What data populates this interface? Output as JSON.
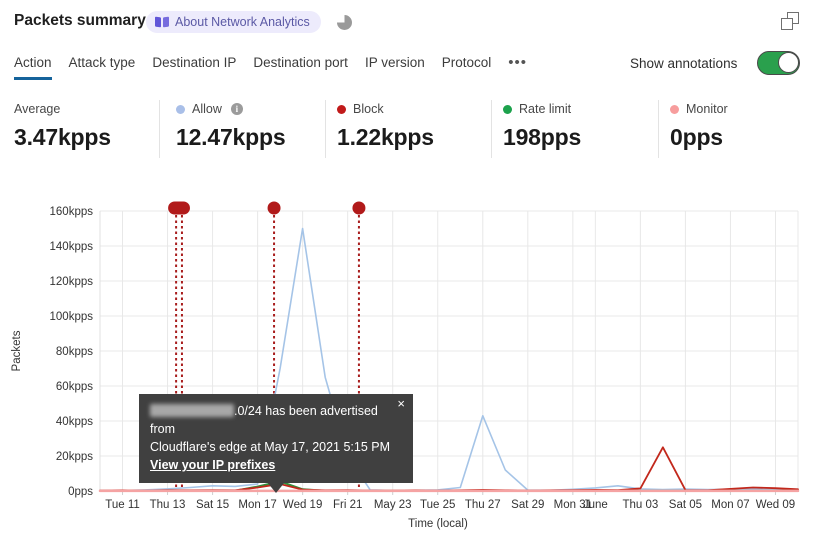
{
  "header": {
    "title": "Packets summary",
    "badge_label": "About Network Analytics"
  },
  "icons": {
    "info": "i",
    "close": "×",
    "more": "•••"
  },
  "tabs": {
    "items": [
      {
        "label": "Action",
        "active": true
      },
      {
        "label": "Attack type",
        "active": false
      },
      {
        "label": "Destination IP",
        "active": false
      },
      {
        "label": "Destination port",
        "active": false
      },
      {
        "label": "IP version",
        "active": false
      },
      {
        "label": "Protocol",
        "active": false
      }
    ]
  },
  "annotations_toggle": {
    "label": "Show annotations",
    "on": true
  },
  "stats": [
    {
      "label": "Average",
      "value": "3.47kpps",
      "dot": null,
      "info": false
    },
    {
      "label": "Allow",
      "value": "12.47kpps",
      "dot": "#a9bfe8",
      "info": true
    },
    {
      "label": "Block",
      "value": "1.22kpps",
      "dot": "#c11a1a",
      "info": false
    },
    {
      "label": "Rate limit",
      "value": "198pps",
      "dot": "#1ca24c",
      "info": false
    },
    {
      "label": "Monitor",
      "value": "0pps",
      "dot": "#f79d9d",
      "info": false
    }
  ],
  "tooltip": {
    "line1": ".0/24 has been advertised from",
    "line2": "Cloudflare's edge at May 17, 2021 5:15 PM",
    "link_label": "View your IP prefixes"
  },
  "chart_data": {
    "type": "line",
    "title": "Packets summary",
    "xlabel": "Time (local)",
    "ylabel": "Packets",
    "unit": "kpps",
    "ylim": [
      0,
      160
    ],
    "grid": true,
    "y_ticks": [
      {
        "value": 0,
        "label": "0pps"
      },
      {
        "value": 20,
        "label": "20kpps"
      },
      {
        "value": 40,
        "label": "40kpps"
      },
      {
        "value": 60,
        "label": "60kpps"
      },
      {
        "value": 80,
        "label": "80kpps"
      },
      {
        "value": 100,
        "label": "100kpps"
      },
      {
        "value": 120,
        "label": "120kpps"
      },
      {
        "value": 140,
        "label": "140kpps"
      },
      {
        "value": 160,
        "label": "160kpps"
      }
    ],
    "x_ticks": [
      {
        "day": 0,
        "label": "Tue 11"
      },
      {
        "day": 2,
        "label": "Thu 13"
      },
      {
        "day": 4,
        "label": "Sat 15"
      },
      {
        "day": 6,
        "label": "Mon 17"
      },
      {
        "day": 8,
        "label": "Wed 19"
      },
      {
        "day": 10,
        "label": "Fri 21"
      },
      {
        "day": 12,
        "label": "May 23"
      },
      {
        "day": 14,
        "label": "Tue 25"
      },
      {
        "day": 16,
        "label": "Thu 27"
      },
      {
        "day": 18,
        "label": "Sat 29"
      },
      {
        "day": 20,
        "label": "Mon 31"
      },
      {
        "day": 21,
        "label": "June"
      },
      {
        "day": 23,
        "label": "Thu 03"
      },
      {
        "day": 25,
        "label": "Sat 05"
      },
      {
        "day": 27,
        "label": "Mon 07"
      },
      {
        "day": 29,
        "label": "Wed 09"
      }
    ],
    "x_range_days": [
      -1,
      30
    ],
    "series": [
      {
        "name": "Allow",
        "color": "#a5c4e7",
        "width": 1.6,
        "points": [
          [
            -1,
            0.2
          ],
          [
            0,
            0.3
          ],
          [
            1,
            0.6
          ],
          [
            2,
            1.2
          ],
          [
            3,
            2
          ],
          [
            4,
            3
          ],
          [
            5,
            2.6
          ],
          [
            6,
            4
          ],
          [
            7,
            70
          ],
          [
            8,
            150
          ],
          [
            9,
            65
          ],
          [
            10,
            20
          ],
          [
            11,
            0.6
          ],
          [
            12,
            0.3
          ],
          [
            13,
            0.4
          ],
          [
            14,
            0.6
          ],
          [
            15,
            2
          ],
          [
            16,
            43
          ],
          [
            17,
            12
          ],
          [
            18,
            0.5
          ],
          [
            19,
            0.4
          ],
          [
            20,
            1
          ],
          [
            21,
            1.8
          ],
          [
            22,
            3
          ],
          [
            23,
            1.2
          ],
          [
            24,
            0.8
          ],
          [
            25,
            1.1
          ],
          [
            26,
            0.8
          ],
          [
            27,
            1
          ],
          [
            28,
            1.1
          ],
          [
            29,
            0.8
          ],
          [
            30,
            0.6
          ]
        ]
      },
      {
        "name": "Rate limit",
        "color": "#2f8f3c",
        "width": 2,
        "points": [
          [
            -1,
            0.1
          ],
          [
            4,
            0.1
          ],
          [
            5,
            0.15
          ],
          [
            6,
            2.5
          ],
          [
            7,
            5.5
          ],
          [
            8,
            1
          ],
          [
            9,
            0.15
          ],
          [
            30,
            0.1
          ]
        ]
      },
      {
        "name": "Block",
        "color": "#c2281c",
        "width": 1.8,
        "points": [
          [
            -1,
            0.3
          ],
          [
            0,
            0.4
          ],
          [
            1,
            0.3
          ],
          [
            2,
            0.5
          ],
          [
            3,
            0.4
          ],
          [
            4,
            0.5
          ],
          [
            5,
            0.4
          ],
          [
            6,
            2
          ],
          [
            7,
            4
          ],
          [
            8,
            0.8
          ],
          [
            9,
            0.4
          ],
          [
            10,
            0.5
          ],
          [
            11,
            0.3
          ],
          [
            12,
            0.3
          ],
          [
            13,
            0.4
          ],
          [
            14,
            0.3
          ],
          [
            15,
            0.4
          ],
          [
            16,
            0.6
          ],
          [
            17,
            0.4
          ],
          [
            18,
            0.3
          ],
          [
            19,
            0.4
          ],
          [
            20,
            0.5
          ],
          [
            21,
            0.6
          ],
          [
            22,
            0.5
          ],
          [
            23,
            1.5
          ],
          [
            24,
            25
          ],
          [
            25,
            0.5
          ],
          [
            26,
            0.4
          ],
          [
            27,
            1.2
          ],
          [
            28,
            2
          ],
          [
            29,
            1.6
          ],
          [
            30,
            1
          ]
        ]
      },
      {
        "name": "Monitor",
        "color": "#f5a3a3",
        "width": 2.5,
        "points": [
          [
            -1,
            0.05
          ],
          [
            30,
            0.05
          ]
        ]
      }
    ],
    "annotations": {
      "color": "#a81d1d",
      "events": [
        {
          "days": [
            2.38,
            2.64
          ],
          "marker": "pill"
        },
        {
          "days": [
            6.73
          ],
          "marker": "circle"
        },
        {
          "days": [
            10.5
          ],
          "marker": "circle"
        }
      ]
    }
  }
}
